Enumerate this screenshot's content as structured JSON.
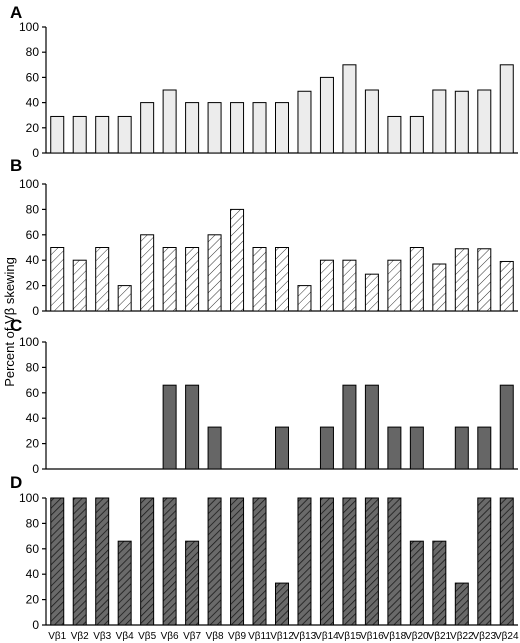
{
  "ylabel": "Percent of Vβ skewing",
  "categories": [
    "Vβ1",
    "Vβ2",
    "Vβ3",
    "Vβ4",
    "Vβ5",
    "Vβ6",
    "Vβ7",
    "Vβ8",
    "Vβ9",
    "Vβ11",
    "Vβ12",
    "Vβ13",
    "Vβ14",
    "Vβ15",
    "Vβ16",
    "Vβ18",
    "Vβ20",
    "Vβ21",
    "Vβ22",
    "Vβ23",
    "Vβ24"
  ],
  "chart_data": [
    {
      "type": "bar",
      "panel": "A",
      "ylim": [
        0,
        100
      ],
      "yticks": [
        "0",
        "20",
        "40",
        "60",
        "80",
        "100"
      ],
      "fill_style": "light-gray",
      "values": [
        29,
        29,
        29,
        29,
        40,
        50,
        40,
        40,
        40,
        40,
        40,
        49,
        60,
        70,
        50,
        29,
        29,
        50,
        49,
        50,
        70
      ]
    },
    {
      "type": "bar",
      "panel": "B",
      "ylim": [
        0,
        100
      ],
      "yticks": [
        "0",
        "20",
        "40",
        "60",
        "80",
        "100"
      ],
      "fill_style": "light-hatch",
      "values": [
        50,
        40,
        50,
        20,
        60,
        50,
        50,
        60,
        80,
        50,
        50,
        20,
        40,
        40,
        29,
        40,
        50,
        37,
        49,
        49,
        39
      ]
    },
    {
      "type": "bar",
      "panel": "C",
      "ylim": [
        0,
        100
      ],
      "yticks": [
        "0",
        "20",
        "40",
        "60",
        "80",
        "100"
      ],
      "fill_style": "dark-gray",
      "values": [
        0,
        0,
        0,
        0,
        0,
        66,
        66,
        33,
        0,
        0,
        33,
        0,
        33,
        66,
        66,
        33,
        33,
        0,
        33,
        33,
        66
      ]
    },
    {
      "type": "bar",
      "panel": "D",
      "ylim": [
        0,
        100
      ],
      "yticks": [
        "0",
        "20",
        "40",
        "60",
        "80",
        "100"
      ],
      "fill_style": "dark-hatch",
      "values": [
        100,
        100,
        100,
        66,
        100,
        100,
        66,
        100,
        100,
        100,
        33,
        100,
        100,
        100,
        100,
        100,
        66,
        66,
        33,
        100,
        100
      ]
    }
  ]
}
